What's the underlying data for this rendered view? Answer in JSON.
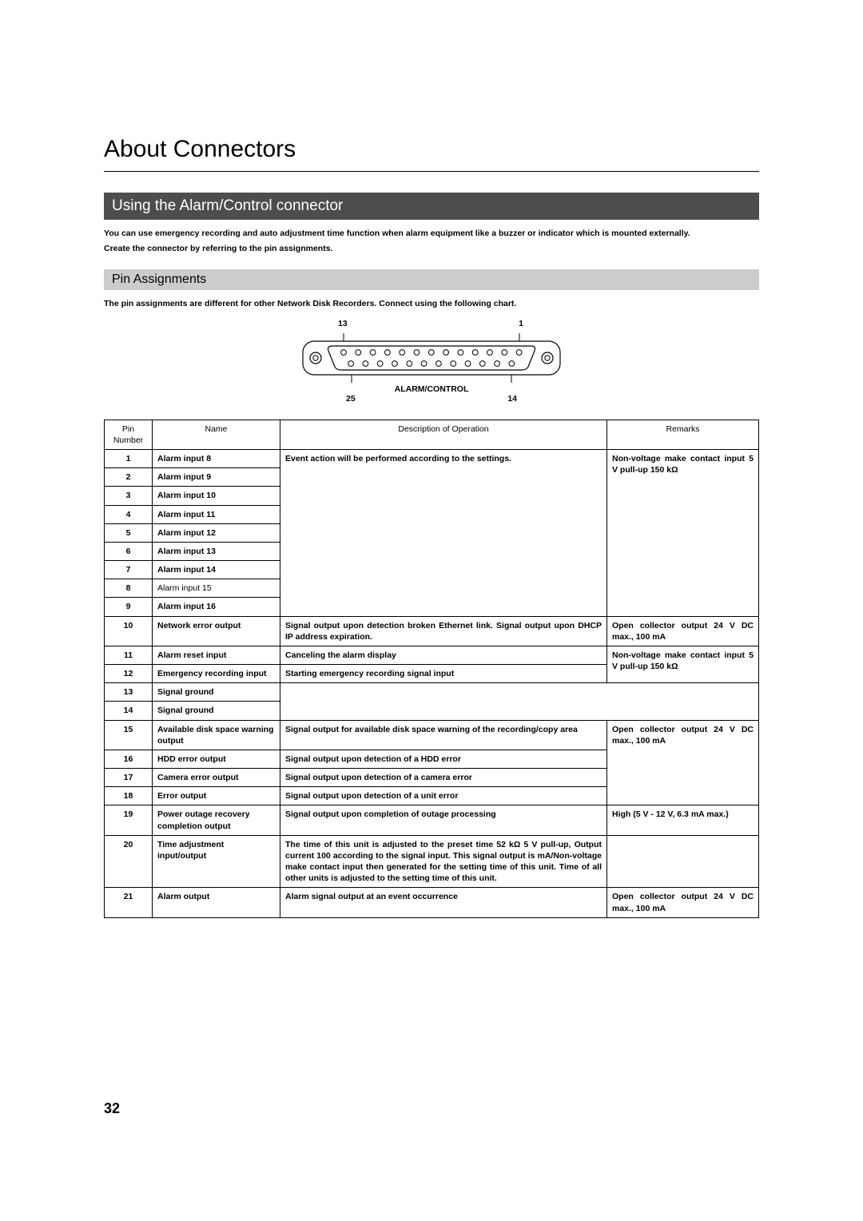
{
  "page": {
    "title": "About Connectors",
    "number": "32"
  },
  "section": {
    "heading": "Using the Alarm/Control connector",
    "body1": "You can use emergency recording and auto adjustment time function when alarm equipment like a buzzer or indicator which is mounted externally.",
    "body2": "Create the connector by referring to the pin assignments."
  },
  "subsection": {
    "heading": "Pin Assignments",
    "note": "The pin assignments are different for other Network Disk Recorders. Connect using the following chart."
  },
  "connector": {
    "top_left": "13",
    "top_right": "1",
    "caption": "ALARM/CONTROL",
    "bottom_left": "25",
    "bottom_right": "14",
    "body_stroke": "#000000",
    "body_fill": "#ffffff",
    "pin_fill": "#ffffff",
    "pin_stroke": "#000000"
  },
  "table": {
    "headers": {
      "pin": "Pin Number",
      "name": "Name",
      "desc": "Description of Operation",
      "remarks": "Remarks"
    },
    "rows": [
      {
        "pin": "1",
        "name": "Alarm input 8",
        "desc": "Event action will be performed according to the settings.",
        "remarks": "Non-voltage make contact input 5 V pull-up 150 kΩ"
      },
      {
        "pin": "2",
        "name": "Alarm input 9",
        "desc": "",
        "remarks": ""
      },
      {
        "pin": "3",
        "name": "Alarm input 10",
        "desc": "",
        "remarks": ""
      },
      {
        "pin": "4",
        "name": "Alarm input 11",
        "desc": "",
        "remarks": ""
      },
      {
        "pin": "5",
        "name": "Alarm input 12",
        "desc": "",
        "remarks": ""
      },
      {
        "pin": "6",
        "name": "Alarm input 13",
        "desc": "",
        "remarks": ""
      },
      {
        "pin": "7",
        "name": "Alarm input 14",
        "desc": "",
        "remarks": ""
      },
      {
        "pin": "8",
        "name": "Alarm input 15",
        "desc": "",
        "remarks": ""
      },
      {
        "pin": "9",
        "name": "Alarm input 16",
        "desc": "",
        "remarks": ""
      },
      {
        "pin": "10",
        "name": "Network error output",
        "desc": "Signal output upon detection broken Ethernet link.\nSignal output upon DHCP IP address expiration.",
        "remarks": "Open collector output 24 V DC max., 100 mA"
      },
      {
        "pin": "11",
        "name": "Alarm reset input",
        "desc": "Canceling the alarm display",
        "remarks": "Non-voltage make contact input 5 V pull-up 150 kΩ"
      },
      {
        "pin": "12",
        "name": "Emergency recording input",
        "desc": "Starting emergency recording signal input",
        "remarks": ""
      },
      {
        "pin": "13",
        "name": "Signal ground",
        "desc": "",
        "remarks": ""
      },
      {
        "pin": "14",
        "name": "Signal ground",
        "desc": "",
        "remarks": ""
      },
      {
        "pin": "15",
        "name": "Available disk space warning output",
        "desc": "Signal output for available disk space warning of the recording/copy area",
        "remarks": "Open collector output 24 V DC max., 100 mA"
      },
      {
        "pin": "16",
        "name": "HDD error output",
        "desc": "Signal output upon detection of a HDD error",
        "remarks": ""
      },
      {
        "pin": "17",
        "name": "Camera error output",
        "desc": "Signal output upon detection of a camera error",
        "remarks": ""
      },
      {
        "pin": "18",
        "name": "Error output",
        "desc": "Signal output upon detection of a unit error",
        "remarks": ""
      },
      {
        "pin": "19",
        "name": "Power outage recovery completion output",
        "desc": "Signal output upon completion of outage processing",
        "remarks": "High (5 V - 12 V, 6.3 mA max.)"
      },
      {
        "pin": "20",
        "name": "Time adjustment input/output",
        "desc": "The time of this unit is adjusted to the preset time 52 kΩ 5 V pull-up, Output current 100 according to the signal input. This signal output is mA/Non-voltage make contact input then generated for the setting time of this unit. Time of all other units is adjusted to the setting time of this unit.",
        "remarks": ""
      },
      {
        "pin": "21",
        "name": "Alarm output",
        "desc": "Alarm signal output at an event occurrence",
        "remarks": "Open collector output 24 V DC max., 100 mA"
      }
    ]
  }
}
